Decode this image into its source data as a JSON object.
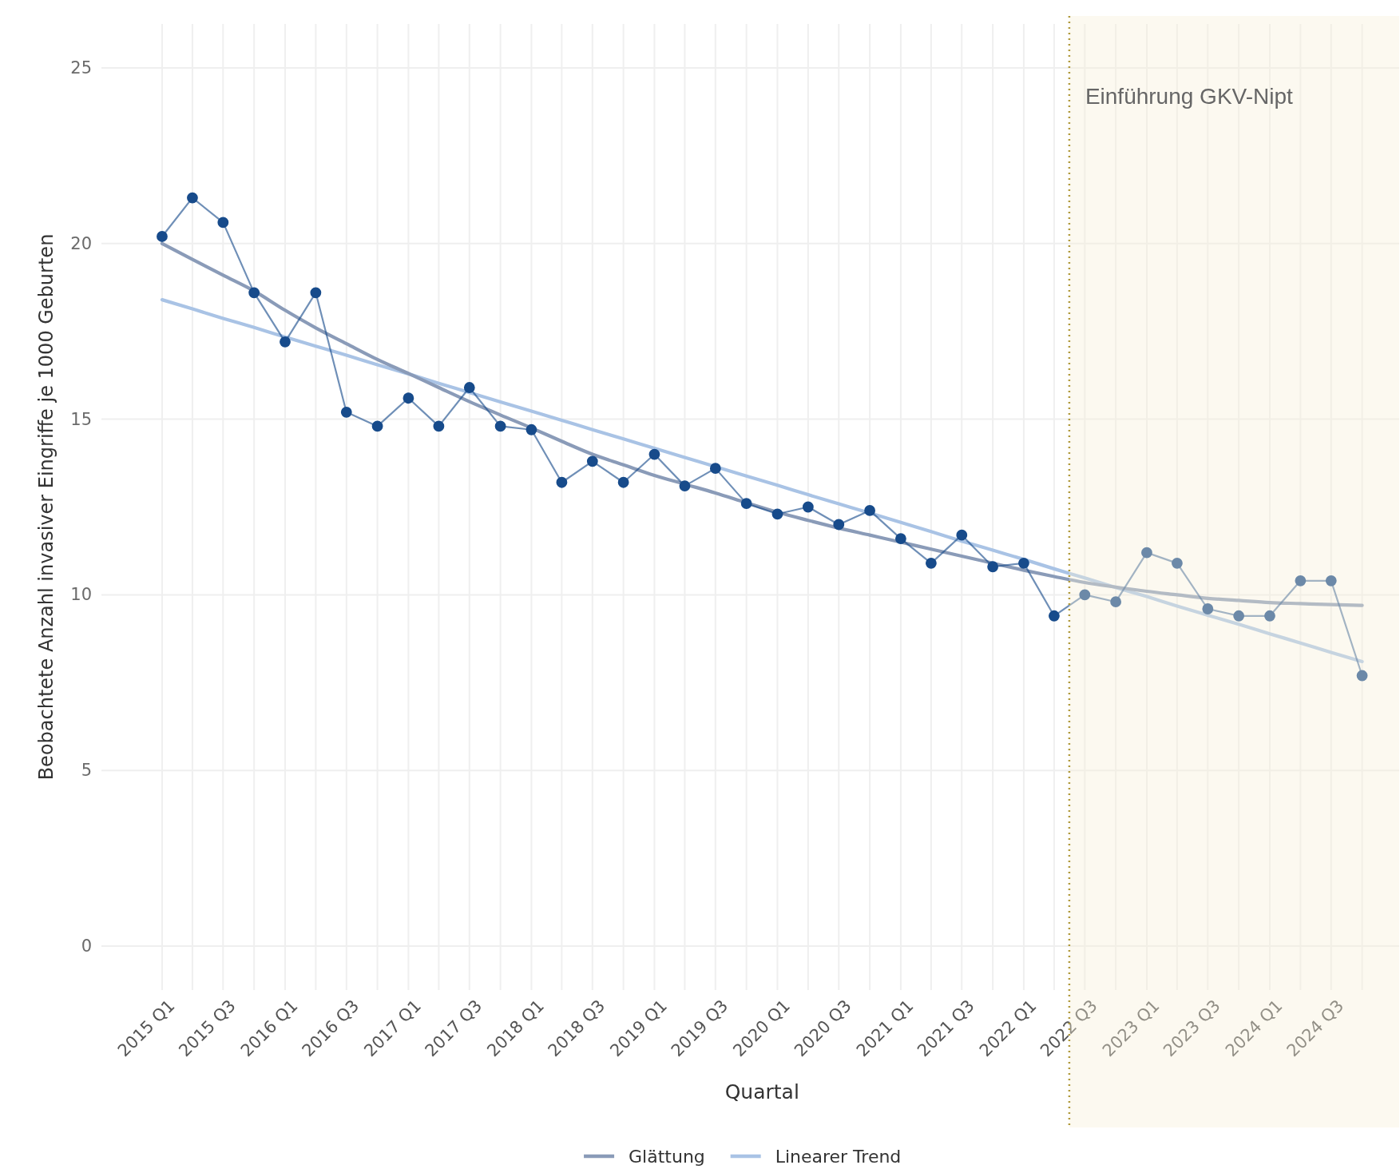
{
  "chart_data": {
    "type": "line",
    "xlabel": "Quartal",
    "ylabel": "Beobachtete Anzahl invasiver Eingriffe je 1000 Geburten",
    "x": [
      "2015-01",
      "2015-04",
      "2015-07",
      "2015-10",
      "2016-01",
      "2016-04",
      "2016-07",
      "2016-10",
      "2017-01",
      "2017-04",
      "2017-07",
      "2017-10",
      "2018-01",
      "2018-04",
      "2018-07",
      "2018-10",
      "2019-01",
      "2019-04",
      "2019-07",
      "2019-10",
      "2020-01",
      "2020-04",
      "2020-07",
      "2020-10",
      "2021-01",
      "2021-04",
      "2021-07",
      "2021-10",
      "2022-01",
      "2022-04",
      "2022-07",
      "2022-10",
      "2023-01",
      "2023-04",
      "2023-07",
      "2023-10",
      "2024-01",
      "2024-04",
      "2024-07",
      "2024-10"
    ],
    "series": [
      {
        "color": "#8a9bb8",
        "name": "Glättung",
        "values": [
          20.0,
          19.55,
          19.1,
          18.65,
          18.1,
          17.6,
          17.15,
          16.7,
          16.3,
          15.9,
          15.5,
          15.12,
          14.75,
          14.37,
          14.0,
          13.7,
          13.4,
          13.15,
          12.9,
          12.62,
          12.35,
          12.12,
          11.9,
          11.7,
          11.5,
          11.3,
          11.1,
          10.9,
          10.7,
          10.52,
          10.35,
          10.22,
          10.1,
          10.0,
          9.9,
          9.84,
          9.78,
          9.75,
          9.72,
          9.7
        ]
      },
      {
        "color": "#a9c3e5",
        "name": "Linearer Trend",
        "values": [
          18.4,
          18.14,
          17.87,
          17.61,
          17.34,
          17.08,
          16.82,
          16.55,
          16.29,
          16.02,
          15.76,
          15.49,
          15.23,
          14.97,
          14.7,
          14.44,
          14.17,
          13.91,
          13.65,
          13.38,
          13.12,
          12.85,
          12.59,
          12.33,
          12.06,
          11.8,
          11.53,
          11.27,
          11.01,
          10.74,
          10.48,
          10.21,
          9.95,
          9.68,
          9.42,
          9.16,
          8.89,
          8.63,
          8.36,
          8.1
        ]
      },
      {
        "color": "#174b8b",
        "marker": "circle",
        "values": [
          20.2,
          21.3,
          20.6,
          18.6,
          17.2,
          18.6,
          15.2,
          14.8,
          15.6,
          14.8,
          15.9,
          14.8,
          14.7,
          13.2,
          13.8,
          13.2,
          14.0,
          13.1,
          13.6,
          12.6,
          12.3,
          12.5,
          12.0,
          12.4,
          11.6,
          10.9,
          11.7,
          10.8,
          10.9,
          9.4,
          10.0,
          9.8,
          11.2,
          10.9,
          9.6,
          9.4,
          9.4,
          10.4,
          10.4,
          7.7
        ]
      }
    ],
    "xlim": [
      "2014-07-05",
      "2025-01-19"
    ],
    "xticks": [
      {
        "value": "2015-01",
        "label": "2015 Q1"
      },
      {
        "value": "2015-04",
        "label": null
      },
      {
        "value": "2015-07",
        "label": "2015 Q3"
      },
      {
        "value": "2015-10",
        "label": null
      },
      {
        "value": "2016-01",
        "label": "2016 Q1"
      },
      {
        "value": "2016-04",
        "label": null
      },
      {
        "value": "2016-07",
        "label": "2016 Q3"
      },
      {
        "value": "2016-10",
        "label": null
      },
      {
        "value": "2017-01",
        "label": "2017 Q1"
      },
      {
        "value": "2017-04",
        "label": null
      },
      {
        "value": "2017-07",
        "label": "2017 Q3"
      },
      {
        "value": "2017-10",
        "label": null
      },
      {
        "value": "2018-01",
        "label": "2018 Q1"
      },
      {
        "value": "2018-04",
        "label": null
      },
      {
        "value": "2018-07",
        "label": "2018 Q3"
      },
      {
        "value": "2018-10",
        "label": null
      },
      {
        "value": "2019-01",
        "label": "2019 Q1"
      },
      {
        "value": "2019-04",
        "label": null
      },
      {
        "value": "2019-07",
        "label": "2019 Q3"
      },
      {
        "value": "2019-10",
        "label": null
      },
      {
        "value": "2020-01",
        "label": "2020 Q1"
      },
      {
        "value": "2020-04",
        "label": null
      },
      {
        "value": "2020-07",
        "label": "2020 Q3"
      },
      {
        "value": "2020-10",
        "label": null
      },
      {
        "value": "2021-01",
        "label": "2021 Q1"
      },
      {
        "value": "2021-04",
        "label": null
      },
      {
        "value": "2021-07",
        "label": "2021 Q3"
      },
      {
        "value": "2021-10",
        "label": null
      },
      {
        "value": "2022-01",
        "label": "2022 Q1"
      },
      {
        "value": "2022-04",
        "label": null
      },
      {
        "value": "2022-07",
        "label": "2022 Q3"
      },
      {
        "value": "2022-10",
        "label": null
      },
      {
        "value": "2023-01",
        "label": "2023 Q1"
      },
      {
        "value": "2023-04",
        "label": null
      },
      {
        "value": "2023-07",
        "label": "2023 Q3"
      },
      {
        "value": "2023-10",
        "label": null
      },
      {
        "value": "2024-01",
        "label": "2024 Q1"
      },
      {
        "value": "2024-04",
        "label": null
      },
      {
        "value": "2024-07",
        "label": "2024 Q3"
      },
      {
        "value": "2024-10",
        "label": null
      }
    ],
    "ylim": [
      -1.25,
      26.25
    ],
    "yticks": [
      0,
      5,
      10,
      15,
      20,
      25
    ],
    "grid": true,
    "legend": "bottom",
    "ref_lines": [
      {
        "axis": "x",
        "value": "2022-05-16",
        "label": "Einführung GKV-Nipt",
        "color": "#b09a3c",
        "line_style": "dotted"
      }
    ],
    "bands": [
      {
        "axis": "x",
        "from": "2022-05-16",
        "to": "2025-01-19"
      }
    ]
  }
}
